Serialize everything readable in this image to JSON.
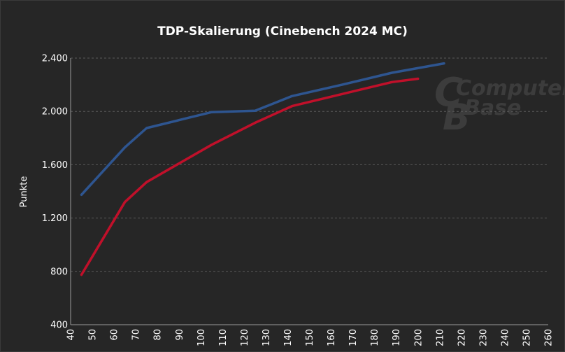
{
  "chart_data": {
    "type": "line",
    "title": "TDP-Skalierung (Cinebench 2024 MC)",
    "xlabel": "",
    "ylabel": "Punkte",
    "xlim": [
      40,
      260
    ],
    "ylim": [
      400,
      2400
    ],
    "x_ticks": [
      40,
      50,
      60,
      70,
      80,
      90,
      100,
      110,
      120,
      130,
      140,
      150,
      160,
      170,
      180,
      190,
      200,
      210,
      220,
      230,
      240,
      250,
      260
    ],
    "y_ticks": [
      {
        "value": 400,
        "label": "400"
      },
      {
        "value": 800,
        "label": "800"
      },
      {
        "value": 1200,
        "label": "1.200"
      },
      {
        "value": 1600,
        "label": "1.600"
      },
      {
        "value": 2000,
        "label": "2.000"
      },
      {
        "value": 2400,
        "label": "2.400"
      }
    ],
    "grid": true,
    "series": [
      {
        "color": "#2e5590",
        "x": [
          45,
          65,
          75,
          90,
          105,
          125,
          142,
          165,
          188,
          212
        ],
        "y": [
          1375,
          1730,
          1875,
          1935,
          1995,
          2005,
          2115,
          2200,
          2290,
          2360
        ]
      },
      {
        "color": "#c0102a",
        "x": [
          45,
          65,
          75,
          90,
          105,
          125,
          142,
          165,
          188,
          200
        ],
        "y": [
          775,
          1320,
          1470,
          1610,
          1750,
          1915,
          2040,
          2130,
          2220,
          2245
        ]
      }
    ]
  },
  "watermark": {
    "line1": "Computer",
    "line2": "Base",
    "big1": "C",
    "big2": "B"
  }
}
